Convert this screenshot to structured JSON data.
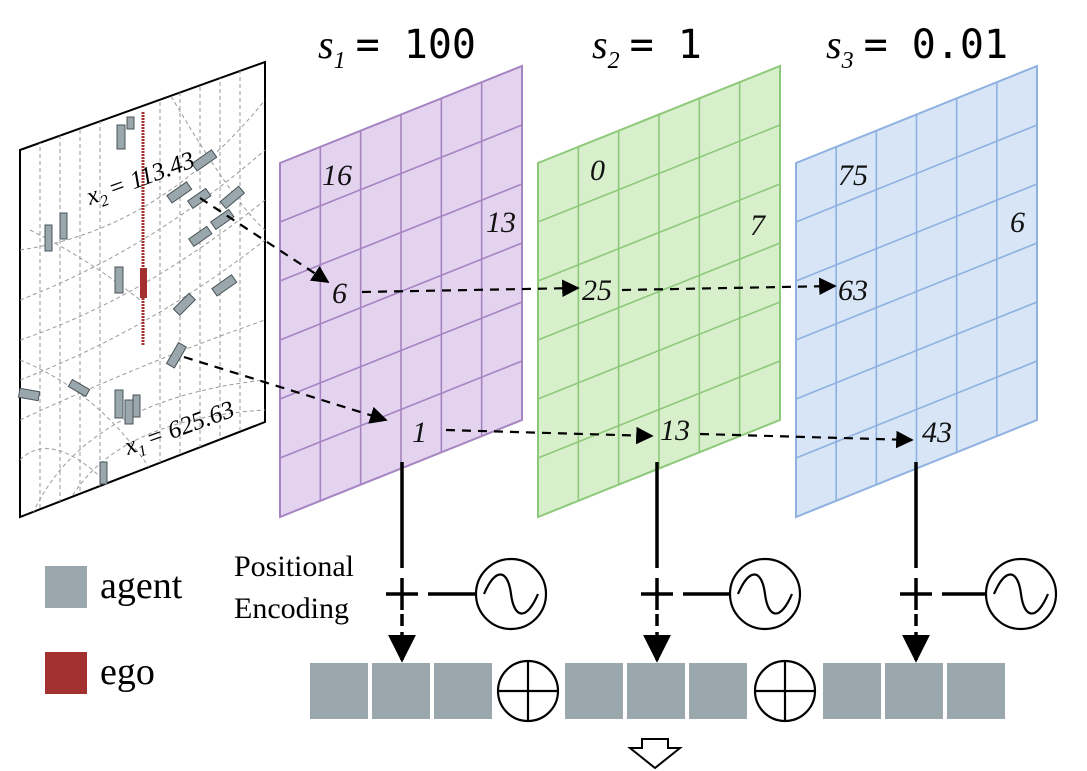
{
  "scales": [
    {
      "sym": "s",
      "sub": "1",
      "eq": "= 100",
      "color": "#e3d3ef",
      "stroke": "#a684c2",
      "cells": [
        "16",
        "13",
        "6",
        "1"
      ]
    },
    {
      "sym": "s",
      "sub": "2",
      "eq": "= 1",
      "color": "#d8efcc",
      "stroke": "#8ec97b",
      "cells": [
        "0",
        "7",
        "25",
        "13"
      ]
    },
    {
      "sym": "s",
      "sub": "3",
      "eq": "= 0.01",
      "color": "#d7e5f6",
      "stroke": "#8eb1e1",
      "cells": [
        "75",
        "6",
        "63",
        "43"
      ]
    }
  ],
  "map": {
    "x2": {
      "sym": "x",
      "sub": "2",
      "val": "= 113.43"
    },
    "x1": {
      "sym": "x",
      "sub": "1",
      "val": "= 625.63"
    }
  },
  "labels": {
    "pe_line1": "Positional",
    "pe_line2": "Encoding"
  },
  "legend": [
    {
      "label": "agent",
      "color": "#9aa8ae"
    },
    {
      "label": "ego",
      "color": "#a3312f"
    }
  ],
  "colors": {
    "agent": "#9aa8ae",
    "ego": "#a3312f",
    "token": "#9aa8ae"
  }
}
